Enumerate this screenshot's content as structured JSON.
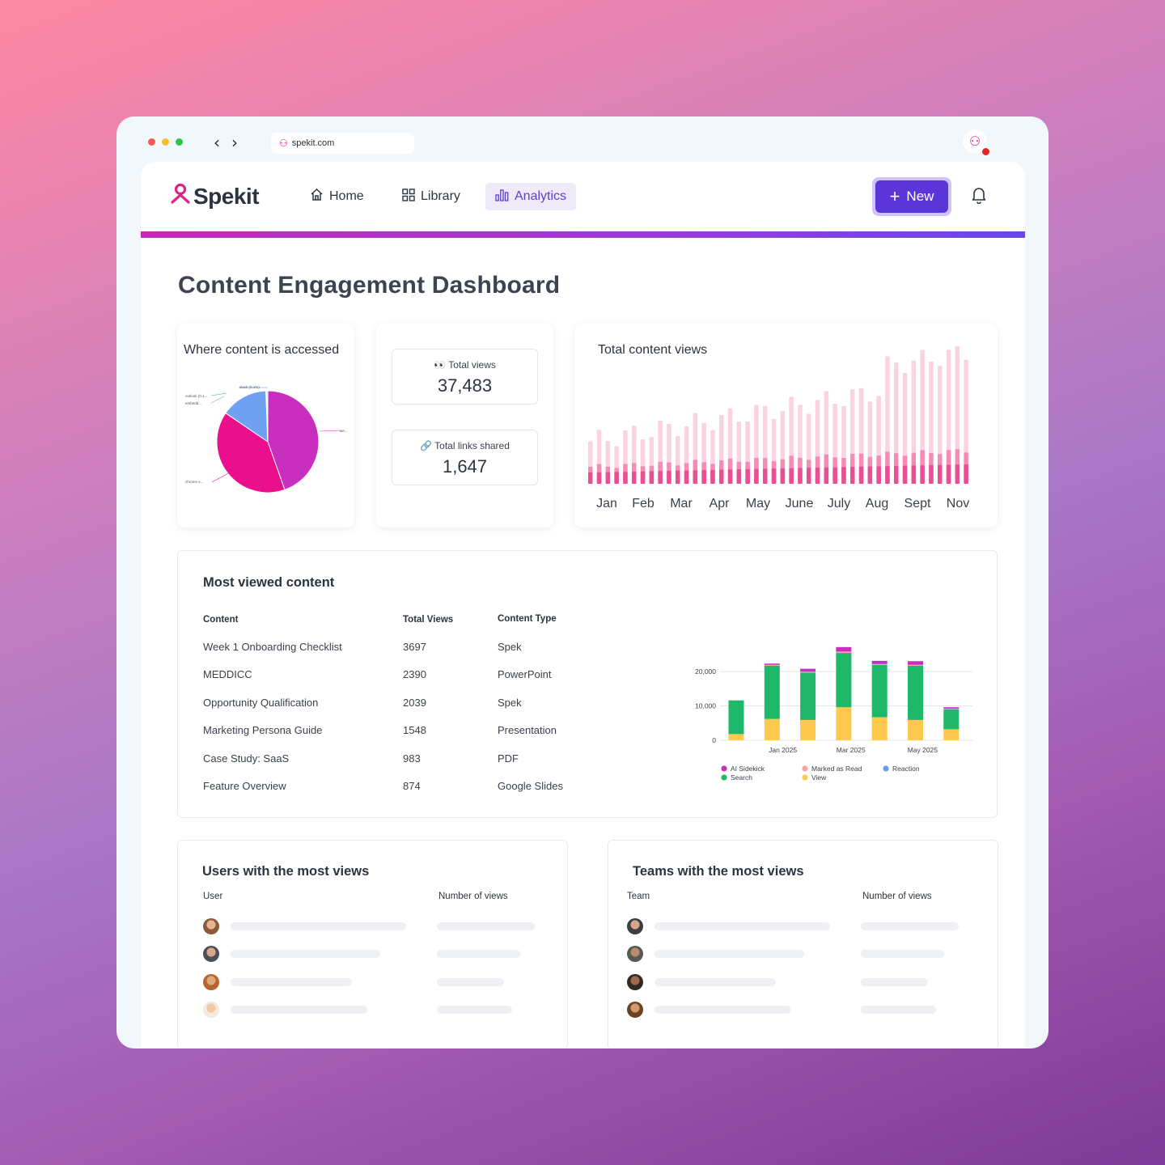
{
  "browser": {
    "url": "spekit.com",
    "dot_colors": [
      "#f25b53",
      "#f6bd2e",
      "#2ec34a"
    ]
  },
  "nav": {
    "logo": "Spekit",
    "items": [
      {
        "label": "Home",
        "icon": "home-icon",
        "active": false
      },
      {
        "label": "Library",
        "icon": "grid-icon",
        "active": false
      },
      {
        "label": "Analytics",
        "icon": "bar-chart-icon",
        "active": true
      }
    ],
    "new_button": "New"
  },
  "page": {
    "title": "Content Engagement Dashboard"
  },
  "pie": {
    "title": "Where content is accessed",
    "slice_labels": [
      "slack (0.1%)",
      "outlook (0.1...",
      "embedd...",
      "we...",
      "chrome s..."
    ],
    "colors": {
      "we": "#c92fbf",
      "chrome": "#ec0f8d",
      "embedded": "#6fa0f2",
      "outlook": "#2eb86a",
      "slack": "#5a8ef0"
    }
  },
  "stats": {
    "total_views_label": "Total views",
    "total_views_value": "37,483",
    "links_label": "Total links shared",
    "links_value": "1,647"
  },
  "views_chart": {
    "title": "Total content views",
    "months": [
      "Jan",
      "Feb",
      "Mar",
      "Apr",
      "May",
      "June",
      "July",
      "Aug",
      "Sept",
      "Nov"
    ]
  },
  "most_viewed": {
    "title": "Most viewed content",
    "headers": [
      "Content",
      "Total Views",
      "Content Type"
    ],
    "rows": [
      [
        "Week 1 Onboarding Checklist",
        "3697",
        "Spek"
      ],
      [
        "MEDDICC",
        "2390",
        "PowerPoint"
      ],
      [
        "Opportunity Qualification",
        "2039",
        "Spek"
      ],
      [
        "Marketing Persona Guide",
        "1548",
        "Presentation"
      ],
      [
        "Case Study: SaaS",
        "983",
        "PDF"
      ],
      [
        "Feature Overview",
        "874",
        "Google Slides"
      ]
    ]
  },
  "chart_data": {
    "type": "bar",
    "stacked": true,
    "x_tick_labels": [
      "Jan 2025",
      "Mar 2025",
      "May 2025"
    ],
    "y_ticks": [
      "0",
      "10,000",
      "20,000"
    ],
    "ylim": [
      0,
      28000
    ],
    "categories": [
      "1",
      "2",
      "3",
      "4",
      "5",
      "6",
      "7"
    ],
    "series": [
      {
        "name": "View",
        "color": "#ffc94d",
        "values": [
          1800,
          6200,
          5900,
          9600,
          6700,
          5900,
          3200
        ]
      },
      {
        "name": "Search",
        "color": "#1fb86a",
        "values": [
          9800,
          15500,
          13800,
          15800,
          15200,
          15800,
          5800
        ]
      },
      {
        "name": "Marked as Read",
        "color": "#f9a3a0",
        "values": [
          0,
          200,
          200,
          300,
          200,
          200,
          100
        ]
      },
      {
        "name": "Reaction",
        "color": "#6f97f0",
        "values": [
          0,
          100,
          100,
          100,
          100,
          100,
          100
        ]
      },
      {
        "name": "AI Sidekick",
        "color": "#c92fbf",
        "values": [
          0,
          300,
          800,
          1300,
          900,
          1000,
          400
        ]
      }
    ],
    "legend": [
      "AI Sidekick",
      "Marked as Read",
      "Reaction",
      "Search",
      "View"
    ]
  },
  "users": {
    "title": "Users with the most views",
    "col1": "User",
    "col2": "Number of views"
  },
  "teams": {
    "title": "Teams with the most views",
    "col1": "Team",
    "col2": "Number of views"
  }
}
